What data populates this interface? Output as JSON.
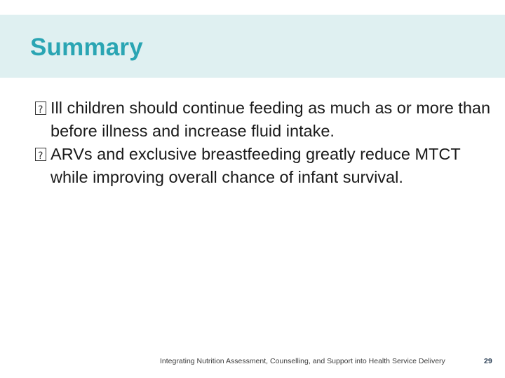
{
  "slide": {
    "title": "Summary",
    "bullets": [
      "Ill children should continue feeding as much as or more than before illness and increase fluid intake.",
      "ARVs and exclusive breastfeeding greatly reduce MTCT while improving overall chance of infant survival."
    ],
    "footer": "Integrating Nutrition Assessment, Counselling, and Support into Health Service Delivery",
    "page_number": "29"
  },
  "colors": {
    "title_band": "#dff0f1",
    "title_text": "#2aa5b3",
    "body_text": "#1a1a1a"
  }
}
